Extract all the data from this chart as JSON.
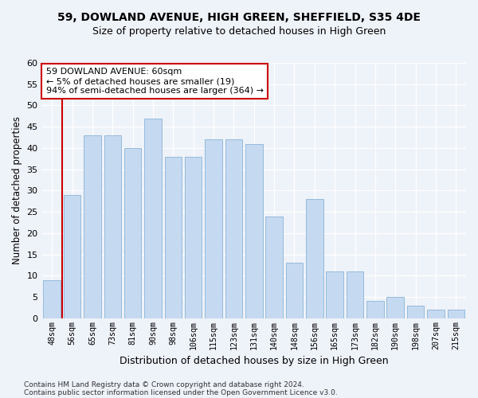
{
  "title": "59, DOWLAND AVENUE, HIGH GREEN, SHEFFIELD, S35 4DE",
  "subtitle": "Size of property relative to detached houses in High Green",
  "xlabel": "Distribution of detached houses by size in High Green",
  "ylabel": "Number of detached properties",
  "categories": [
    "48sqm",
    "56sqm",
    "65sqm",
    "73sqm",
    "81sqm",
    "90sqm",
    "98sqm",
    "106sqm",
    "115sqm",
    "123sqm",
    "131sqm",
    "140sqm",
    "148sqm",
    "156sqm",
    "165sqm",
    "173sqm",
    "182sqm",
    "190sqm",
    "198sqm",
    "207sqm",
    "215sqm"
  ],
  "bar_values": [
    9,
    29,
    43,
    43,
    40,
    47,
    38,
    38,
    42,
    42,
    41,
    24,
    13,
    28,
    11,
    11,
    4,
    5,
    3,
    2,
    2
  ],
  "bar_color": "#c5d9f0",
  "bar_edge_color": "#8ab4d8",
  "reference_line_color": "#cc0000",
  "reference_line_x": 0.5,
  "ylim": [
    0,
    60
  ],
  "yticks": [
    0,
    5,
    10,
    15,
    20,
    25,
    30,
    35,
    40,
    45,
    50,
    55,
    60
  ],
  "annotation_text": "59 DOWLAND AVENUE: 60sqm\n← 5% of detached houses are smaller (19)\n94% of semi-detached houses are larger (364) →",
  "annotation_box_color": "#ffffff",
  "annotation_box_edge_color": "#cc0000",
  "footer1": "Contains HM Land Registry data © Crown copyright and database right 2024.",
  "footer2": "Contains public sector information licensed under the Open Government Licence v3.0.",
  "background_color": "#eef2f9",
  "grid_color": "#ffffff"
}
